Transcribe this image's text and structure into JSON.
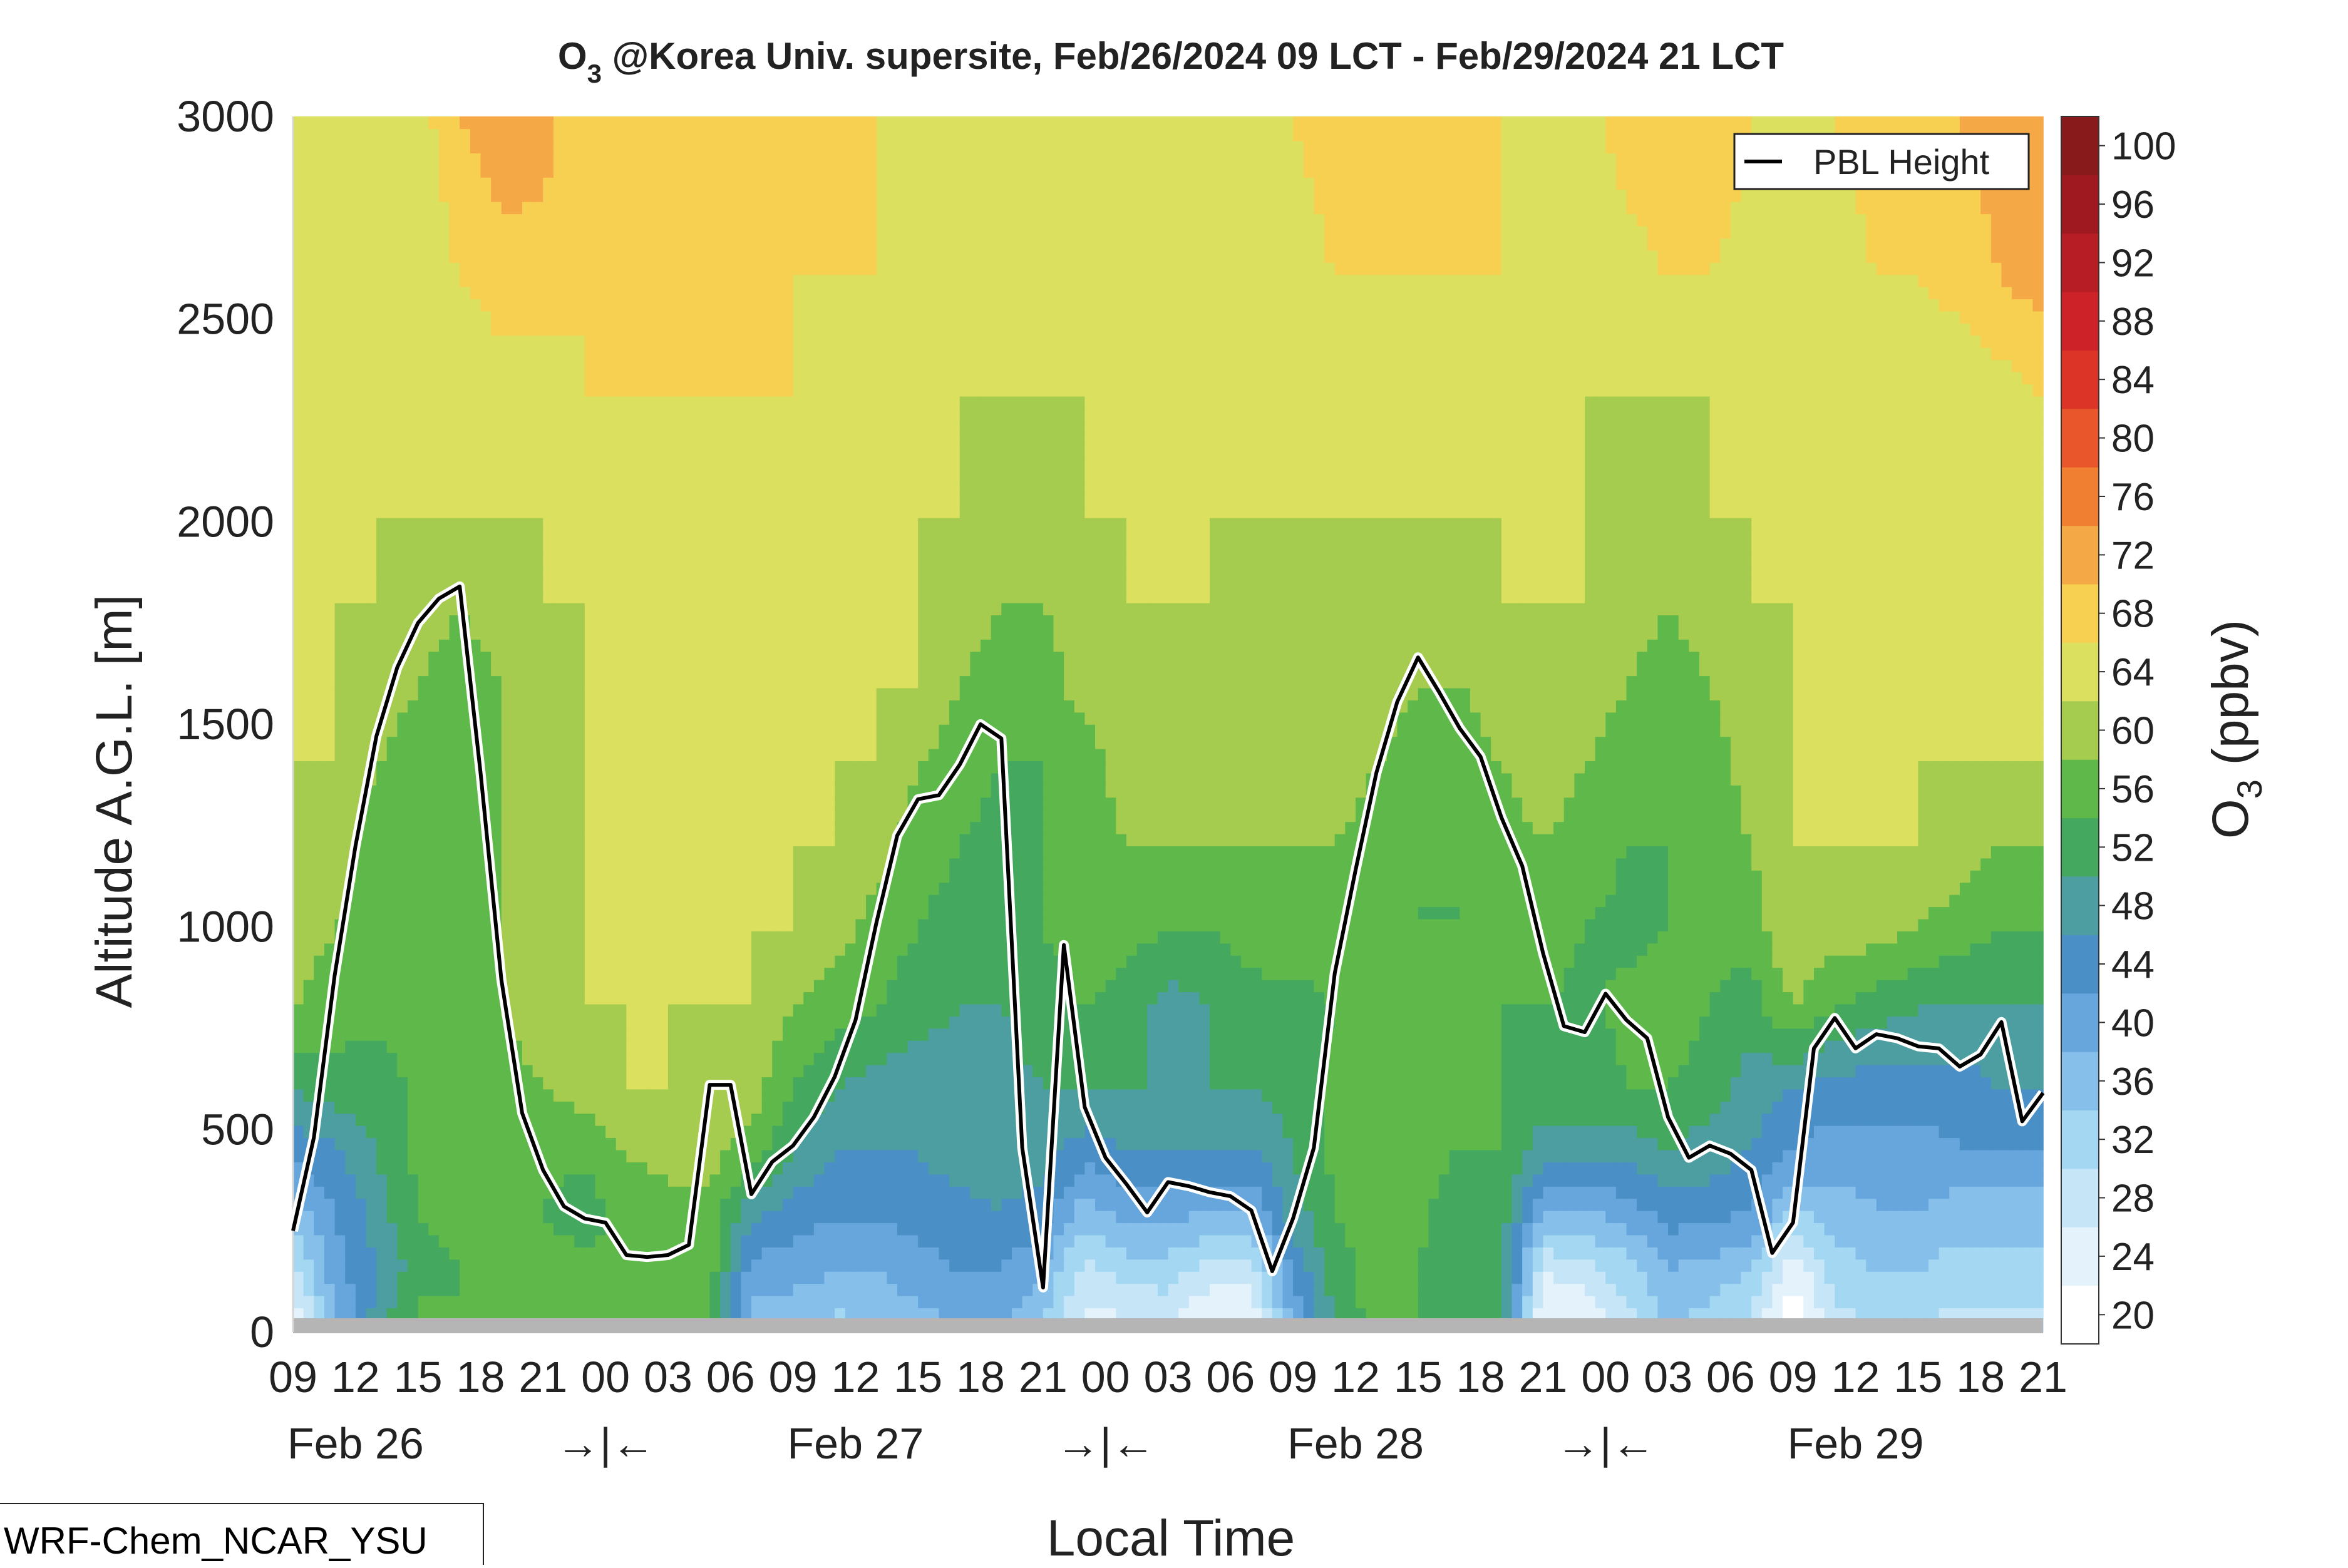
{
  "chart_data": {
    "type": "heatmap",
    "title": {
      "species": "O",
      "species_subscript": "3",
      "rest": " @Korea Univ. supersite, Feb/26/2024 09 LCT - Feb/29/2024 21 LCT"
    },
    "xlabel": "Local Time",
    "ylabel": "Altitude A.G.L. [m]",
    "ylim": [
      0,
      3000
    ],
    "xlim_hours": [
      0,
      84
    ],
    "y_ticks": [
      "0",
      "500",
      "1000",
      "1500",
      "2000",
      "2500",
      "3000"
    ],
    "x_hour_ticks": [
      "09",
      "12",
      "15",
      "18",
      "21",
      "00",
      "03",
      "06",
      "09",
      "12",
      "15",
      "18",
      "21",
      "00",
      "03",
      "06",
      "09",
      "12",
      "15",
      "18",
      "21",
      "00",
      "03",
      "06",
      "09",
      "12",
      "15",
      "18",
      "21"
    ],
    "day_labels": [
      {
        "text": "Feb 26",
        "hour": 3
      },
      {
        "text": "→|←",
        "hour": 15
      },
      {
        "text": "Feb 27",
        "hour": 27
      },
      {
        "text": "→|←",
        "hour": 39
      },
      {
        "text": "Feb 28",
        "hour": 51
      },
      {
        "text": "→|←",
        "hour": 63
      },
      {
        "text": "Feb 29",
        "hour": 75
      }
    ],
    "colorbar": {
      "label": "O",
      "label_subscript": "3",
      "unit": " (ppbv)",
      "levels": [
        20,
        24,
        28,
        32,
        36,
        40,
        44,
        48,
        52,
        56,
        60,
        64,
        68,
        72,
        76,
        80,
        84,
        88,
        92,
        96,
        100
      ],
      "level_labels": [
        "20",
        "24",
        "28",
        "32",
        "36",
        "40",
        "44",
        "48",
        "52",
        "56",
        "60",
        "64",
        "68",
        "72",
        "76",
        "80",
        "84",
        "88",
        "92",
        "96",
        "100"
      ],
      "colors": [
        "#ffffff",
        "#e4f2fb",
        "#c6e6f8",
        "#a3d7f2",
        "#86c0ea",
        "#66a6dc",
        "#4b8fc7",
        "#4c9ea0",
        "#44a95f",
        "#5eb94a",
        "#a5cc4e",
        "#dbe05e",
        "#f8d051",
        "#f5a946",
        "#f17f31",
        "#e9562c",
        "#dd3428",
        "#cc2228",
        "#b61d24",
        "#9e1a20",
        "#891a1c"
      ]
    },
    "pbl_height": {
      "name": "PBL Height",
      "hours": [
        0,
        1,
        2,
        3,
        4,
        5,
        6,
        7,
        8,
        9,
        10,
        11,
        12,
        13,
        14,
        15,
        16,
        17,
        18,
        19,
        20,
        21,
        22,
        23,
        24,
        25,
        26,
        27,
        28,
        29,
        30,
        31,
        32,
        33,
        34,
        35,
        36,
        37,
        38,
        39,
        40,
        41,
        42,
        43,
        44,
        45,
        46,
        47,
        48,
        49,
        50,
        51,
        52,
        53,
        54,
        55,
        56,
        57,
        58,
        59,
        60,
        61,
        62,
        63,
        64,
        65,
        66,
        67,
        68,
        69,
        70,
        71,
        72,
        73,
        74,
        75,
        76,
        77,
        78,
        79,
        80,
        81,
        82,
        83,
        84
      ],
      "values": [
        250,
        480,
        880,
        1200,
        1470,
        1640,
        1750,
        1810,
        1840,
        1380,
        870,
        540,
        400,
        310,
        280,
        270,
        190,
        185,
        190,
        215,
        610,
        610,
        340,
        420,
        460,
        530,
        630,
        770,
        1010,
        1225,
        1315,
        1325,
        1400,
        1500,
        1465,
        455,
        110,
        955,
        555,
        430,
        365,
        295,
        370,
        360,
        345,
        335,
        300,
        150,
        280,
        455,
        885,
        1140,
        1380,
        1555,
        1665,
        1580,
        1490,
        1420,
        1270,
        1150,
        935,
        755,
        740,
        835,
        770,
        725,
        530,
        430,
        460,
        440,
        400,
        195,
        270,
        700,
        775,
        700,
        735,
        725,
        705,
        700,
        655,
        685,
        765,
        520,
        590
      ]
    },
    "legend_position": "top-right",
    "ozone_field": {
      "hours": [
        0,
        2,
        4,
        6,
        8,
        10,
        12,
        14,
        16,
        18,
        20,
        22,
        24,
        26,
        28,
        30,
        32,
        34,
        36,
        38,
        40,
        42,
        44,
        46,
        48,
        50,
        52,
        54,
        56,
        58,
        60,
        62,
        64,
        66,
        68,
        70,
        72,
        74,
        76,
        78,
        80,
        82,
        84
      ],
      "altitudes": [
        0,
        150,
        300,
        450,
        600,
        800,
        1000,
        1200,
        1400,
        1600,
        1800,
        2000,
        2300,
        2600,
        3000
      ],
      "values_ppbv": [
        [
          24,
          38,
          50,
          58,
          56,
          60,
          60,
          58,
          57,
          57,
          58,
          38,
          36,
          34,
          36,
          38,
          40,
          40,
          36,
          26,
          26,
          28,
          22,
          22,
          40,
          52,
          58,
          56,
          52,
          54,
          22,
          24,
          30,
          36,
          34,
          30,
          20,
          30,
          32,
          32,
          30,
          30,
          30
        ],
        [
          30,
          42,
          48,
          54,
          56,
          60,
          58,
          57,
          57,
          57,
          58,
          42,
          42,
          40,
          40,
          42,
          44,
          44,
          40,
          30,
          34,
          34,
          30,
          30,
          44,
          54,
          58,
          56,
          52,
          54,
          28,
          30,
          34,
          40,
          38,
          36,
          24,
          34,
          36,
          36,
          34,
          34,
          34
        ],
        [
          38,
          44,
          50,
          56,
          58,
          60,
          56,
          54,
          58,
          58,
          58,
          50,
          46,
          45,
          45,
          46,
          47,
          48,
          46,
          38,
          42,
          42,
          40,
          40,
          50,
          56,
          58,
          57,
          54,
          54,
          40,
          40,
          42,
          46,
          46,
          44,
          36,
          38,
          40,
          40,
          38,
          38,
          38
        ],
        [
          46,
          47,
          52,
          57,
          58,
          58,
          57,
          57,
          60,
          62,
          62,
          58,
          52,
          48,
          48,
          48,
          50,
          50,
          50,
          46,
          48,
          48,
          48,
          48,
          52,
          57,
          58,
          57,
          56,
          56,
          50,
          50,
          50,
          52,
          50,
          48,
          44,
          42,
          42,
          42,
          44,
          44,
          44
        ],
        [
          52,
          54,
          54,
          57,
          57,
          58,
          60,
          62,
          64,
          64,
          63,
          62,
          56,
          52,
          50,
          49,
          50,
          50,
          52,
          52,
          52,
          52,
          52,
          52,
          54,
          57,
          58,
          57,
          56,
          56,
          54,
          54,
          56,
          56,
          54,
          50,
          48,
          46,
          46,
          46,
          46,
          48,
          48
        ],
        [
          60,
          58,
          57,
          57,
          58,
          60,
          62,
          64,
          64,
          64,
          64,
          64,
          60,
          58,
          56,
          54,
          52,
          52,
          54,
          56,
          54,
          50,
          52,
          54,
          54,
          56,
          57,
          57,
          57,
          56,
          56,
          55,
          57,
          58,
          56,
          54,
          60,
          56,
          54,
          52,
          52,
          52,
          52
        ],
        [
          62,
          60,
          58,
          58,
          58,
          60,
          64,
          64,
          64,
          64,
          64,
          64,
          64,
          62,
          58,
          56,
          54,
          54,
          56,
          58,
          58,
          56,
          56,
          58,
          60,
          58,
          56,
          56,
          56,
          58,
          58,
          56,
          55,
          56,
          57,
          58,
          64,
          62,
          62,
          60,
          58,
          56,
          56
        ],
        [
          63,
          62,
          58,
          58,
          58,
          60,
          62,
          64,
          64,
          64,
          64,
          64,
          64,
          64,
          62,
          58,
          56,
          54,
          56,
          58,
          60,
          60,
          60,
          60,
          60,
          60,
          58,
          56,
          56,
          58,
          60,
          58,
          56,
          56,
          57,
          60,
          64,
          64,
          64,
          64,
          62,
          60,
          60
        ],
        [
          64,
          64,
          60,
          58,
          58,
          60,
          62,
          64,
          64,
          64,
          64,
          64,
          64,
          64,
          64,
          60,
          58,
          56,
          56,
          58,
          62,
          62,
          62,
          62,
          62,
          62,
          60,
          58,
          58,
          60,
          62,
          60,
          58,
          56,
          58,
          62,
          64,
          64,
          64,
          64,
          64,
          64,
          64
        ],
        [
          64,
          64,
          62,
          60,
          58,
          60,
          62,
          64,
          64,
          64,
          64,
          64,
          64,
          64,
          64,
          64,
          60,
          58,
          58,
          62,
          62,
          62,
          62,
          62,
          62,
          62,
          62,
          60,
          60,
          62,
          64,
          62,
          60,
          58,
          60,
          62,
          64,
          64,
          64,
          64,
          64,
          64,
          64
        ],
        [
          64,
          64,
          64,
          62,
          60,
          62,
          64,
          64,
          64,
          64,
          64,
          64,
          64,
          64,
          64,
          64,
          62,
          60,
          60,
          62,
          64,
          64,
          64,
          62,
          62,
          62,
          62,
          62,
          62,
          64,
          64,
          64,
          62,
          60,
          62,
          64,
          64,
          64,
          64,
          64,
          64,
          64,
          64
        ],
        [
          64,
          64,
          64,
          64,
          64,
          64,
          64,
          64,
          66,
          66,
          66,
          64,
          64,
          64,
          64,
          64,
          64,
          62,
          62,
          64,
          64,
          64,
          64,
          64,
          64,
          64,
          64,
          64,
          64,
          64,
          64,
          64,
          62,
          62,
          64,
          64,
          64,
          64,
          64,
          64,
          64,
          64,
          64
        ],
        [
          64,
          64,
          64,
          64,
          64,
          66,
          66,
          68,
          68,
          68,
          68,
          68,
          68,
          66,
          66,
          64,
          64,
          64,
          64,
          64,
          64,
          64,
          64,
          64,
          64,
          64,
          64,
          64,
          64,
          64,
          64,
          64,
          64,
          64,
          64,
          64,
          64,
          64,
          64,
          64,
          64,
          66,
          68
        ],
        [
          64,
          64,
          64,
          64,
          68,
          70,
          70,
          68,
          68,
          68,
          68,
          68,
          68,
          68,
          68,
          66,
          64,
          64,
          64,
          64,
          64,
          64,
          64,
          64,
          66,
          68,
          68,
          68,
          68,
          68,
          64,
          66,
          66,
          68,
          68,
          66,
          64,
          66,
          68,
          68,
          70,
          72,
          74
        ],
        [
          64,
          64,
          64,
          66,
          72,
          75,
          74,
          68,
          68,
          68,
          68,
          68,
          68,
          68,
          68,
          68,
          64,
          64,
          64,
          66,
          64,
          64,
          64,
          64,
          68,
          70,
          72,
          72,
          70,
          68,
          68,
          66,
          70,
          72,
          72,
          68,
          66,
          68,
          70,
          72,
          72,
          74,
          74
        ]
      ]
    }
  },
  "footer": {
    "model_label": "WRF-Chem_NCAR_YSU"
  }
}
